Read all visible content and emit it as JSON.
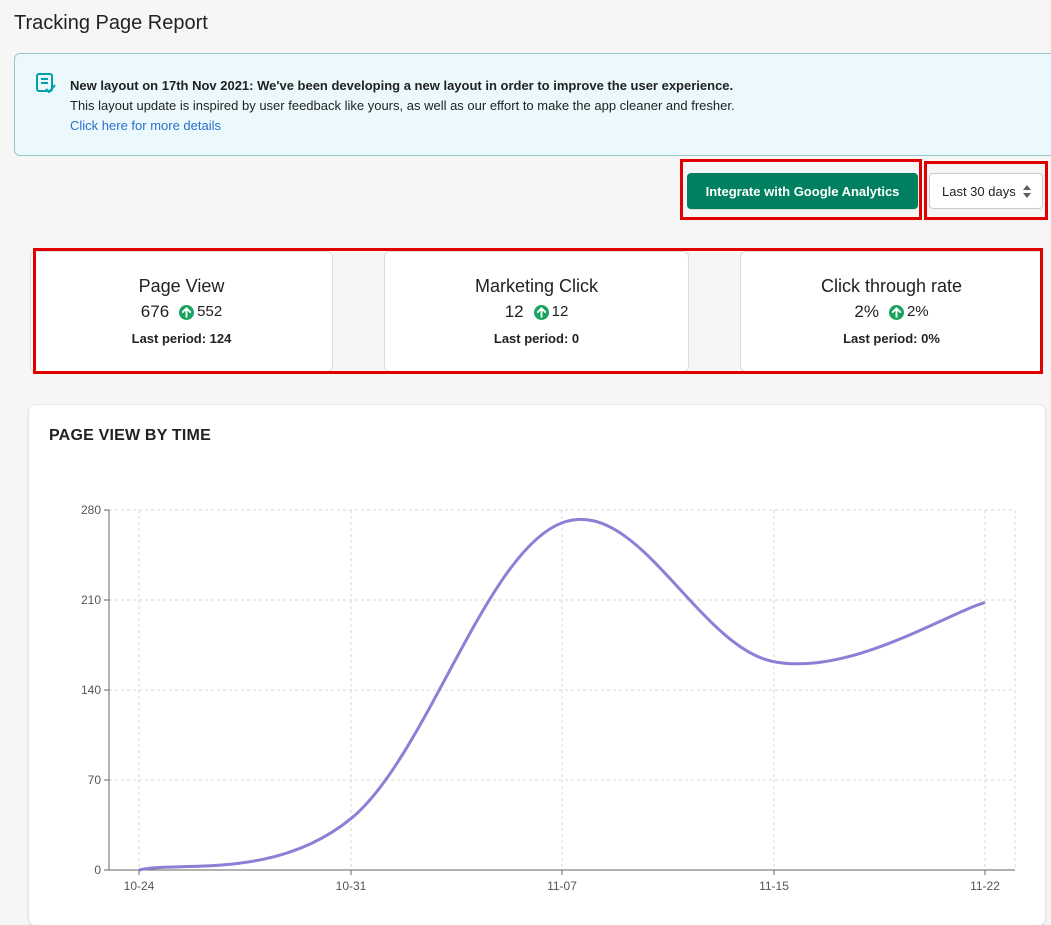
{
  "page": {
    "title": "Tracking Page Report"
  },
  "banner": {
    "icon": "checklist-icon",
    "heading": "New layout on 17th Nov 2021: We've been developing a new layout in order to improve the user experience.",
    "body": "This layout update is inspired by user feedback like yours, as well as our effort to make the app cleaner and fresher.",
    "link": "Click here for more details",
    "accent": "#00a0ac"
  },
  "toolbar": {
    "integrate_label": "Integrate with Google Analytics",
    "range_value": "Last 30 days",
    "button_color": "#008060"
  },
  "stats": [
    {
      "title": "Page View",
      "value": "676",
      "delta": "552",
      "last_label": "Last period: 124"
    },
    {
      "title": "Marketing Click",
      "value": "12",
      "delta": "12",
      "last_label": "Last period: 0"
    },
    {
      "title": "Click through rate",
      "value": "2%",
      "delta": "2%",
      "last_label": "Last period: 0%"
    }
  ],
  "delta_color": "#1aa35e",
  "chart": {
    "title": "PAGE VIEW BY TIME"
  },
  "chart_data": {
    "type": "line",
    "categories": [
      "10-24",
      "10-31",
      "11-07",
      "11-15",
      "11-22"
    ],
    "series": [
      {
        "values": [
          0,
          40,
          270,
          162,
          208
        ],
        "color": "#8a80d6"
      }
    ],
    "yticks": [
      0,
      70,
      140,
      210,
      280
    ],
    "ylim": [
      0,
      280
    ],
    "grid": true
  }
}
